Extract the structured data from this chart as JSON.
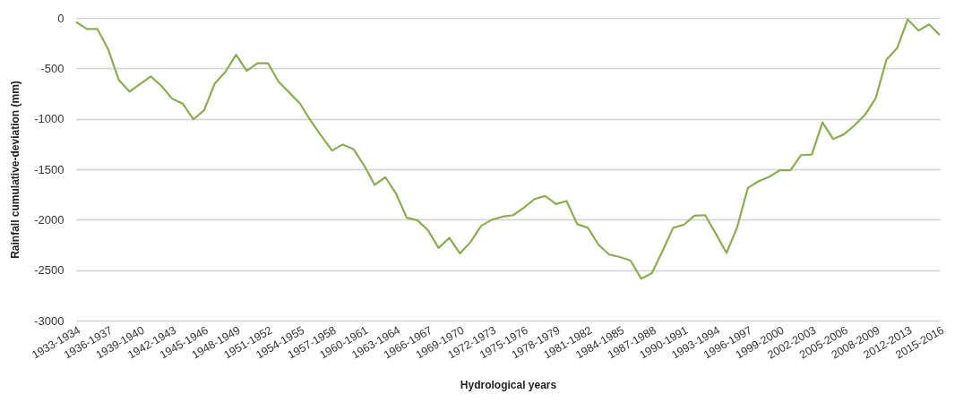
{
  "chart_data": {
    "type": "line",
    "xlabel": "Hydrological years",
    "ylabel": "Rainfall cumulative-deviation (mm)",
    "categories": [
      "1933-1934",
      null,
      null,
      "1936-1937",
      null,
      null,
      "1939-1940",
      null,
      null,
      "1942-1943",
      null,
      null,
      "1945-1946",
      null,
      null,
      "1948-1949",
      null,
      null,
      "1951-1952",
      null,
      null,
      "1954-1955",
      null,
      null,
      "1957-1958",
      null,
      null,
      "1960-1961",
      null,
      null,
      "1963-1964",
      null,
      null,
      "1966-1967",
      null,
      null,
      "1969-1970",
      null,
      null,
      "1972-1973",
      null,
      null,
      "1975-1976",
      null,
      null,
      "1978-1979",
      null,
      null,
      "1981-1982",
      null,
      null,
      "1984-1985",
      null,
      null,
      "1987-1988",
      null,
      null,
      "1990-1991",
      null,
      null,
      "1993-1994",
      null,
      null,
      "1996-1997",
      null,
      null,
      "1999-2000",
      null,
      null,
      "2002-2003",
      null,
      null,
      "2005-2006",
      null,
      null,
      "2008-2009",
      null,
      null,
      "2012-2013",
      null,
      null,
      "2015-2016"
    ],
    "series": [
      {
        "color": "#8bac52",
        "values": [
          -40,
          -110,
          -110,
          -310,
          -615,
          -730,
          -655,
          -580,
          -675,
          -800,
          -850,
          -1005,
          -915,
          -650,
          -535,
          -365,
          -525,
          -450,
          -450,
          -635,
          -740,
          -850,
          -1020,
          -1170,
          -1315,
          -1255,
          -1300,
          -1460,
          -1655,
          -1580,
          -1740,
          -1980,
          -2005,
          -2105,
          -2280,
          -2180,
          -2335,
          -2220,
          -2060,
          -2000,
          -1970,
          -1955,
          -1880,
          -1795,
          -1765,
          -1845,
          -1815,
          -2045,
          -2080,
          -2250,
          -2345,
          -2370,
          -2405,
          -2585,
          -2530,
          -2310,
          -2080,
          -2050,
          -1960,
          -1955,
          -2140,
          -2330,
          -2075,
          -1685,
          -1620,
          -1575,
          -1510,
          -1510,
          -1360,
          -1355,
          -1035,
          -1200,
          -1155,
          -1065,
          -960,
          -795,
          -415,
          -300,
          -15,
          -125,
          -65,
          -170
        ]
      }
    ],
    "ylim": [
      -3000,
      0
    ],
    "yticks": [
      -3000,
      -2500,
      -2000,
      -1500,
      -1000,
      -500,
      0
    ],
    "grid": "y"
  }
}
